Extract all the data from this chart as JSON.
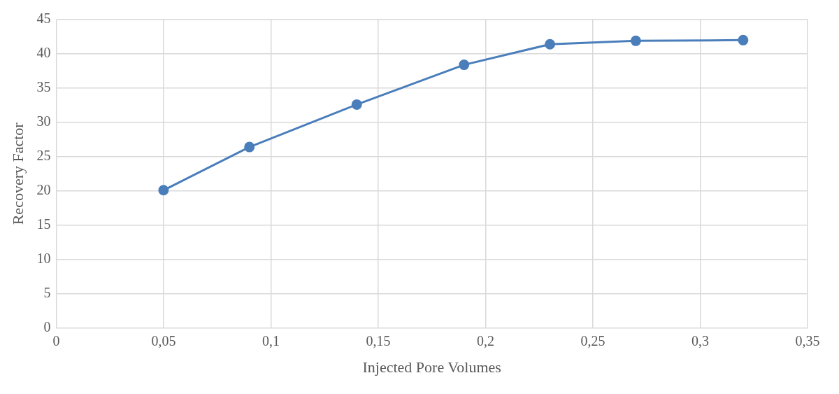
{
  "chart_data": {
    "type": "line",
    "xlabel": "Injected Pore Volumes",
    "ylabel": "Recovery Factor",
    "x": [
      0.05,
      0.09,
      0.14,
      0.19,
      0.23,
      0.27,
      0.32
    ],
    "series": [
      {
        "color": "#4a7ebb",
        "values": [
          20.1,
          26.4,
          32.6,
          38.4,
          41.4,
          41.9,
          42.0
        ]
      }
    ],
    "xlim": [
      0,
      0.35
    ],
    "xticks": [
      0,
      {
        "value": 0.05,
        "label": "0,05"
      },
      {
        "value": 0.1,
        "label": "0,1"
      },
      {
        "value": 0.15,
        "label": "0,15"
      },
      {
        "value": 0.2,
        "label": "0,2"
      },
      {
        "value": 0.25,
        "label": "0,25"
      },
      {
        "value": 0.3,
        "label": "0,3"
      },
      {
        "value": 0.35,
        "label": "0,35"
      }
    ],
    "ylim": [
      0,
      45
    ],
    "yticks": [
      0,
      5,
      10,
      15,
      20,
      25,
      30,
      35,
      40,
      45
    ],
    "grid": true,
    "legend": false,
    "marker": "circle",
    "line_style": "solid"
  }
}
